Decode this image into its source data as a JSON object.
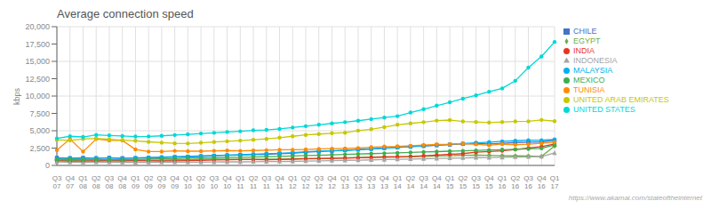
{
  "chart_data": {
    "type": "line",
    "title": "Average connection speed",
    "y_label": "kbps",
    "annotations": [
      "https://www.akamai.com/stateoftheinternet"
    ],
    "categories": [
      "Q3\n07",
      "Q4\n07",
      "Q1\n08",
      "Q2\n08",
      "Q3\n08",
      "Q4\n08",
      "Q1\n09",
      "Q2\n09",
      "Q3\n09",
      "Q4\n09",
      "Q1\n10",
      "Q2\n10",
      "Q3\n10",
      "Q4\n10",
      "Q1\n11",
      "Q2\n11",
      "Q3\n11",
      "Q4\n11",
      "Q1\n12",
      "Q2\n12",
      "Q3\n12",
      "Q4\n12",
      "Q1\n13",
      "Q2\n13",
      "Q3\n13",
      "Q4\n13",
      "Q1\n14",
      "Q2\n14",
      "Q3\n14",
      "Q4\n14",
      "Q1\n15",
      "Q2\n15",
      "Q3\n15",
      "Q4\n15",
      "Q1\n16",
      "Q2\n16",
      "Q3\n16",
      "Q4\n16",
      "Q1\n17"
    ],
    "ylim": [
      0,
      20000
    ],
    "yticks": [
      0,
      {
        "value": 2500,
        "label": "2,500"
      },
      {
        "value": 5000,
        "label": "5,000"
      },
      {
        "value": 7500,
        "label": "7,500"
      },
      {
        "value": 10000,
        "label": "10,000"
      },
      {
        "value": 12500,
        "label": "12,500"
      },
      {
        "value": 15000,
        "label": "15,000"
      },
      {
        "value": 17500,
        "label": "17,500"
      },
      {
        "value": 20000,
        "label": "20,000"
      }
    ],
    "grid": true,
    "legend": "right",
    "series": [
      {
        "name": "CHILE",
        "color": "#4472c4",
        "marker": "square",
        "values": [
          1100,
          1050,
          1100,
          1050,
          1100,
          1050,
          1050,
          1100,
          1150,
          1200,
          1250,
          1300,
          1400,
          1450,
          1500,
          1550,
          1600,
          1700,
          1750,
          1900,
          2000,
          2100,
          2200,
          2300,
          2400,
          2500,
          2600,
          2700,
          2800,
          2900,
          3000,
          3100,
          3150,
          3100,
          3200,
          3300,
          3350,
          3400,
          3600
        ]
      },
      {
        "name": "EGYPT",
        "color": "#70ad47",
        "marker": "diamond",
        "values": [
          750,
          700,
          750,
          750,
          700,
          650,
          680,
          720,
          760,
          800,
          830,
          860,
          900,
          880,
          870,
          880,
          900,
          920,
          960,
          1000,
          1000,
          1050,
          1100,
          1150,
          1200,
          1250,
          1200,
          1250,
          1300,
          1350,
          1400,
          1450,
          1480,
          1450,
          1400,
          1380,
          1350,
          1300,
          2800
        ]
      },
      {
        "name": "INDIA",
        "color": "#e8341c",
        "marker": "circle",
        "values": [
          650,
          600,
          620,
          640,
          650,
          660,
          680,
          660,
          640,
          660,
          700,
          730,
          780,
          820,
          860,
          840,
          820,
          860,
          900,
          940,
          980,
          1000,
          1050,
          1100,
          1150,
          1200,
          1250,
          1300,
          1400,
          1500,
          1600,
          1700,
          1900,
          2000,
          2100,
          2300,
          2500,
          2700,
          3100
        ]
      },
      {
        "name": "INDONESIA",
        "color": "#a5a5a5",
        "marker": "triangle",
        "values": [
          500,
          480,
          450,
          460,
          460,
          440,
          420,
          430,
          460,
          480,
          460,
          470,
          490,
          510,
          510,
          530,
          550,
          560,
          580,
          620,
          660,
          700,
          740,
          760,
          800,
          840,
          880,
          920,
          960,
          1000,
          1040,
          1080,
          1120,
          1130,
          1160,
          1200,
          1240,
          1280,
          1800
        ]
      },
      {
        "name": "MALAYSIA",
        "color": "#00b0f0",
        "marker": "circle",
        "values": [
          1000,
          1050,
          1000,
          1050,
          1060,
          1020,
          1100,
          1150,
          1200,
          1250,
          1300,
          1380,
          1420,
          1480,
          1540,
          1620,
          1680,
          1750,
          1840,
          1960,
          2060,
          2100,
          2150,
          2250,
          2350,
          2480,
          2580,
          2700,
          2820,
          2940,
          3040,
          3160,
          3260,
          3360,
          3480,
          3560,
          3640,
          3640,
          3750
        ]
      },
      {
        "name": "MEXICO",
        "color": "#3dae4f",
        "marker": "circle",
        "values": [
          860,
          900,
          860,
          860,
          820,
          820,
          860,
          900,
          940,
          990,
          1040,
          1060,
          1100,
          1140,
          1160,
          1210,
          1260,
          1310,
          1360,
          1420,
          1470,
          1530,
          1590,
          1640,
          1700,
          1750,
          1810,
          1870,
          1930,
          1990,
          2050,
          2100,
          2160,
          2220,
          2270,
          2320,
          2380,
          2460,
          2950
        ]
      },
      {
        "name": "TUNISIA",
        "color": "#ff8c00",
        "marker": "circle",
        "values": [
          2200,
          3800,
          2000,
          3800,
          3600,
          3600,
          2300,
          2000,
          2000,
          2100,
          2050,
          2050,
          2100,
          2150,
          2100,
          2150,
          2200,
          2250,
          2250,
          2300,
          2380,
          2420,
          2450,
          2520,
          2620,
          2720,
          2750,
          2840,
          2940,
          3040,
          3060,
          3140,
          3060,
          2900,
          3080,
          2980,
          3050,
          3180,
          3350
        ]
      },
      {
        "name": "UNITED ARAB EMIRATES",
        "color": "#c8c800",
        "marker": "circle",
        "values": [
          3700,
          3600,
          3800,
          3900,
          3750,
          3650,
          3550,
          3400,
          3280,
          3180,
          3160,
          3260,
          3380,
          3480,
          3580,
          3700,
          3820,
          4000,
          4200,
          4400,
          4520,
          4640,
          4720,
          5020,
          5220,
          5520,
          5860,
          6060,
          6240,
          6460,
          6540,
          6340,
          6260,
          6180,
          6260,
          6340,
          6360,
          6560,
          6380
        ]
      },
      {
        "name": "UNITED STATES",
        "color": "#00d8d8",
        "marker": "circle",
        "values": [
          3900,
          4200,
          4100,
          4400,
          4320,
          4240,
          4160,
          4180,
          4260,
          4380,
          4480,
          4600,
          4700,
          4820,
          4920,
          5060,
          5120,
          5260,
          5460,
          5660,
          5860,
          6060,
          6240,
          6440,
          6680,
          6900,
          7100,
          7620,
          8100,
          8620,
          9100,
          9620,
          10100,
          10620,
          11100,
          12200,
          14100,
          15700,
          17800
        ]
      }
    ]
  }
}
